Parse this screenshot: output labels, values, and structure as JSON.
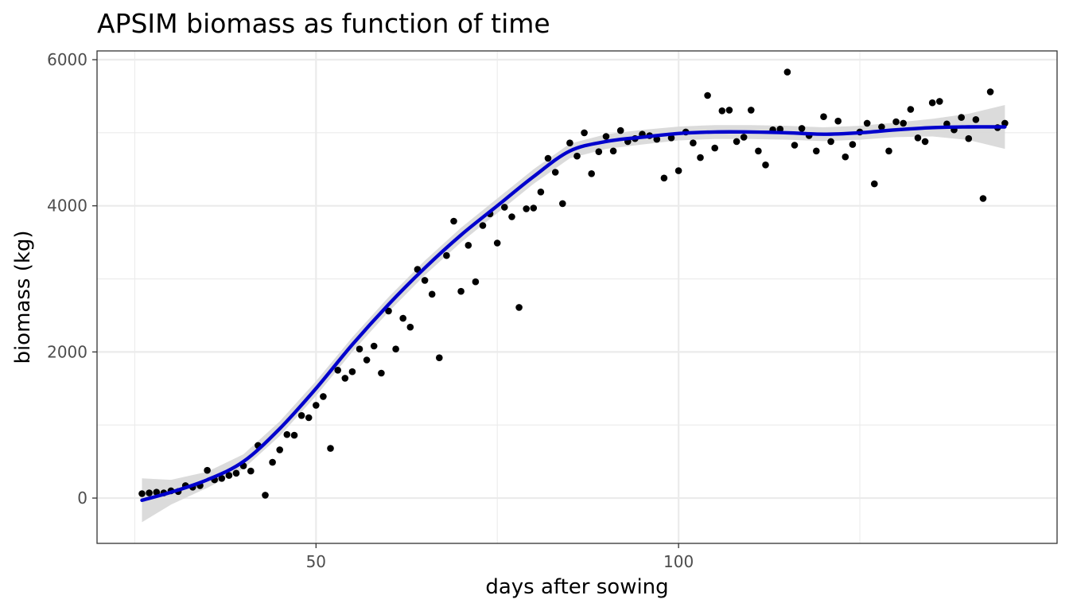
{
  "chart_data": {
    "type": "scatter",
    "title": "APSIM biomass as function of time",
    "xlabel": "days after sowing",
    "ylabel": "biomass (kg)",
    "xlim": [
      19.8,
      152.2
    ],
    "ylim": [
      -620,
      6120
    ],
    "x_ticks": [
      50,
      100
    ],
    "y_ticks": [
      0,
      2000,
      4000,
      6000
    ],
    "x_minor": [
      25,
      75,
      125
    ],
    "y_minor": [
      1000,
      3000,
      5000
    ],
    "grid": true,
    "legend": "none",
    "colors": {
      "points": "#000000",
      "smooth": "#0000cc",
      "band": "#d9d9d9",
      "panel_border": "#333333",
      "grid": "#ebebeb"
    },
    "points": [
      [
        26,
        60
      ],
      [
        27,
        70
      ],
      [
        28,
        80
      ],
      [
        29,
        70
      ],
      [
        30,
        100
      ],
      [
        31,
        90
      ],
      [
        32,
        170
      ],
      [
        33,
        150
      ],
      [
        34,
        170
      ],
      [
        35,
        380
      ],
      [
        36,
        250
      ],
      [
        37,
        270
      ],
      [
        38,
        310
      ],
      [
        39,
        340
      ],
      [
        40,
        440
      ],
      [
        41,
        370
      ],
      [
        42,
        720
      ],
      [
        43,
        40
      ],
      [
        44,
        490
      ],
      [
        45,
        660
      ],
      [
        46,
        870
      ],
      [
        47,
        860
      ],
      [
        48,
        1130
      ],
      [
        49,
        1100
      ],
      [
        50,
        1270
      ],
      [
        51,
        1390
      ],
      [
        52,
        680
      ],
      [
        53,
        1750
      ],
      [
        54,
        1640
      ],
      [
        55,
        1730
      ],
      [
        56,
        2040
      ],
      [
        57,
        1890
      ],
      [
        58,
        2080
      ],
      [
        59,
        1710
      ],
      [
        60,
        2560
      ],
      [
        61,
        2040
      ],
      [
        62,
        2460
      ],
      [
        63,
        2340
      ],
      [
        64,
        3130
      ],
      [
        65,
        2980
      ],
      [
        66,
        2790
      ],
      [
        67,
        1920
      ],
      [
        68,
        3320
      ],
      [
        69,
        3790
      ],
      [
        70,
        2830
      ],
      [
        71,
        3460
      ],
      [
        72,
        2960
      ],
      [
        73,
        3730
      ],
      [
        74,
        3890
      ],
      [
        75,
        3490
      ],
      [
        76,
        3980
      ],
      [
        77,
        3850
      ],
      [
        78,
        2610
      ],
      [
        79,
        3960
      ],
      [
        80,
        3970
      ],
      [
        81,
        4190
      ],
      [
        82,
        4650
      ],
      [
        83,
        4460
      ],
      [
        84,
        4030
      ],
      [
        85,
        4860
      ],
      [
        86,
        4680
      ],
      [
        87,
        5000
      ],
      [
        88,
        4440
      ],
      [
        89,
        4740
      ],
      [
        90,
        4950
      ],
      [
        91,
        4750
      ],
      [
        92,
        5030
      ],
      [
        93,
        4880
      ],
      [
        94,
        4920
      ],
      [
        95,
        4980
      ],
      [
        96,
        4960
      ],
      [
        97,
        4910
      ],
      [
        98,
        4380
      ],
      [
        99,
        4930
      ],
      [
        100,
        4480
      ],
      [
        101,
        5010
      ],
      [
        102,
        4860
      ],
      [
        103,
        4660
      ],
      [
        104,
        5510
      ],
      [
        105,
        4790
      ],
      [
        106,
        5300
      ],
      [
        107,
        5310
      ],
      [
        108,
        4880
      ],
      [
        109,
        4940
      ],
      [
        110,
        5310
      ],
      [
        111,
        4750
      ],
      [
        112,
        4560
      ],
      [
        113,
        5040
      ],
      [
        114,
        5050
      ],
      [
        115,
        5830
      ],
      [
        116,
        4830
      ],
      [
        117,
        5060
      ],
      [
        118,
        4960
      ],
      [
        119,
        4750
      ],
      [
        120,
        5220
      ],
      [
        121,
        4880
      ],
      [
        122,
        5160
      ],
      [
        123,
        4670
      ],
      [
        124,
        4840
      ],
      [
        125,
        5010
      ],
      [
        126,
        5130
      ],
      [
        127,
        4300
      ],
      [
        128,
        5080
      ],
      [
        129,
        4750
      ],
      [
        130,
        5150
      ],
      [
        131,
        5130
      ],
      [
        132,
        5320
      ],
      [
        133,
        4930
      ],
      [
        134,
        4880
      ],
      [
        135,
        5410
      ],
      [
        136,
        5430
      ],
      [
        137,
        5120
      ],
      [
        138,
        5040
      ],
      [
        139,
        5210
      ],
      [
        140,
        4920
      ],
      [
        141,
        5180
      ],
      [
        142,
        4100
      ],
      [
        143,
        5560
      ],
      [
        144,
        5070
      ],
      [
        145,
        5130
      ]
    ],
    "smooth": {
      "x": [
        26,
        30,
        35,
        40,
        45,
        50,
        55,
        60,
        65,
        70,
        75,
        80,
        85,
        90,
        95,
        100,
        105,
        110,
        115,
        120,
        125,
        130,
        135,
        140,
        145
      ],
      "y": [
        -30,
        80,
        250,
        500,
        950,
        1500,
        2100,
        2650,
        3150,
        3600,
        4000,
        4400,
        4750,
        4880,
        4940,
        4990,
        5010,
        5010,
        5000,
        4980,
        5000,
        5040,
        5070,
        5080,
        5080
      ],
      "se": [
        300,
        170,
        110,
        100,
        100,
        100,
        100,
        100,
        100,
        100,
        100,
        100,
        100,
        100,
        100,
        95,
        95,
        95,
        95,
        95,
        95,
        100,
        120,
        180,
        300
      ]
    }
  }
}
